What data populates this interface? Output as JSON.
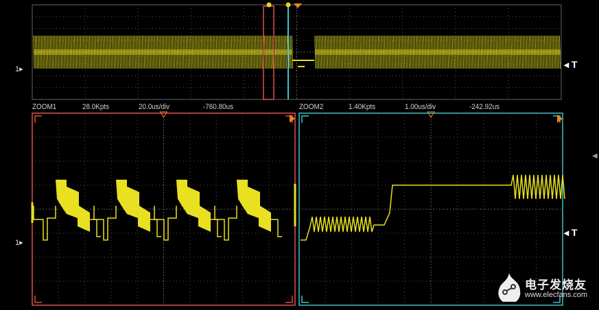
{
  "overview": {
    "trigger_label": "T",
    "channel_label": "1"
  },
  "zoom1": {
    "name": "ZOOM1",
    "points": "28.0Kpts",
    "timebase": "20.0us/div",
    "position": "-760.80us",
    "frame_color": "#e05030"
  },
  "zoom2": {
    "name": "ZOOM2",
    "points": "1.40Kpts",
    "timebase": "1.00us/div",
    "position": "-242.92us",
    "frame_color": "#40c0c8"
  },
  "main": {
    "trigger_label": "T",
    "channel_label": "1"
  },
  "colors": {
    "trace": "#e8e020",
    "grid": "#555555",
    "trigger_marker": "#f08020",
    "zoom1": "#e05050",
    "zoom2": "#40c0c8"
  },
  "watermark": {
    "text": "电子发烧友",
    "url": "www.elecfans.com"
  },
  "side_panel_arrow": "chevron-left-icon"
}
